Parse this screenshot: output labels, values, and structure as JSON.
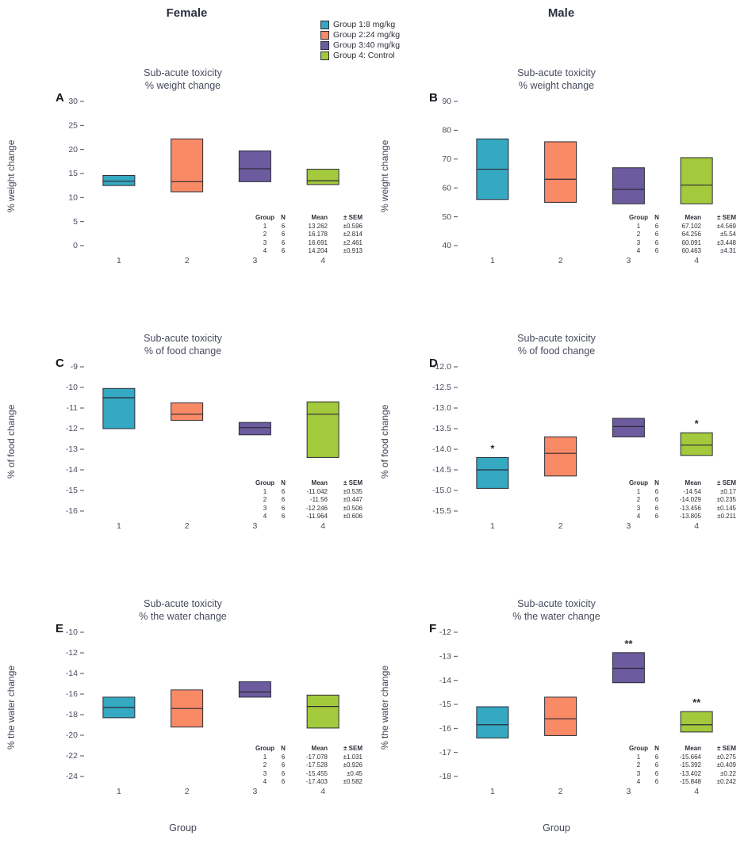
{
  "columns": [
    "Female",
    "Male"
  ],
  "legend": {
    "items": [
      {
        "label": "Group 1:8 mg/kg",
        "color": "#35a8c2"
      },
      {
        "label": "Group 2:24 mg/kg",
        "color": "#f98a66"
      },
      {
        "label": "Group 3:40 mg/kg",
        "color": "#6c5b9e"
      },
      {
        "label": "Group 4: Control",
        "color": "#a3c93c"
      }
    ]
  },
  "style": {
    "box_outline": "#2a2a35"
  },
  "stats_header": [
    "Group",
    "N",
    "Mean",
    "± SEM"
  ],
  "chart_data": [
    {
      "type": "bar",
      "bar_style": "floating-range-with-mean-line",
      "letter": "A",
      "sex": "Female",
      "title1": "Sub-acute toxicity",
      "title2": "% weight change",
      "ylabel": "% weight change",
      "ylim": [
        0,
        30
      ],
      "yticks": [
        "30",
        "25",
        "20",
        "15",
        "10",
        "5",
        "0"
      ],
      "categories": [
        "1",
        "2",
        "3",
        "4"
      ],
      "boxes": [
        {
          "low": 12.5,
          "high": 14.6,
          "mid": 13.4,
          "marker": ""
        },
        {
          "low": 11.2,
          "high": 22.2,
          "mid": 13.3,
          "marker": ""
        },
        {
          "low": 13.3,
          "high": 19.7,
          "mid": 16.0,
          "marker": ""
        },
        {
          "low": 12.7,
          "high": 15.9,
          "mid": 13.5,
          "marker": ""
        }
      ],
      "stats": [
        {
          "group": "1",
          "n": "6",
          "mean": "13.262",
          "sem": "±0.596"
        },
        {
          "group": "2",
          "n": "6",
          "mean": "16.178",
          "sem": "±2.814"
        },
        {
          "group": "3",
          "n": "6",
          "mean": "16.691",
          "sem": "±2.461"
        },
        {
          "group": "4",
          "n": "6",
          "mean": "14.204",
          "sem": "±0.913"
        }
      ]
    },
    {
      "type": "bar",
      "bar_style": "floating-range-with-mean-line",
      "letter": "B",
      "sex": "Male",
      "title1": "Sub-acute toxicity",
      "title2": "%  weight change",
      "ylabel": "% weight change",
      "ylim": [
        40,
        90
      ],
      "yticks": [
        "90",
        "80",
        "70",
        "60",
        "50",
        "40"
      ],
      "categories": [
        "1",
        "2",
        "3",
        "4"
      ],
      "boxes": [
        {
          "low": 56,
          "high": 77,
          "mid": 66.5,
          "marker": ""
        },
        {
          "low": 55,
          "high": 76,
          "mid": 63,
          "marker": ""
        },
        {
          "low": 54.5,
          "high": 67,
          "mid": 59.5,
          "marker": ""
        },
        {
          "low": 54.5,
          "high": 70.5,
          "mid": 61,
          "marker": ""
        }
      ],
      "stats": [
        {
          "group": "1",
          "n": "6",
          "mean": "67.102",
          "sem": "±4.569"
        },
        {
          "group": "2",
          "n": "6",
          "mean": "64.256",
          "sem": "±5.54"
        },
        {
          "group": "3",
          "n": "6",
          "mean": "60.091",
          "sem": "±3.448"
        },
        {
          "group": "4",
          "n": "6",
          "mean": "60.463",
          "sem": "±4.31"
        }
      ]
    },
    {
      "type": "bar",
      "bar_style": "floating-range-with-mean-line",
      "letter": "C",
      "sex": "Female",
      "title1": "Sub-acute toxicity",
      "title2": "% of food change",
      "ylabel": "% of food change",
      "ylim": [
        -16,
        -9
      ],
      "yticks": [
        "-9",
        "-10",
        "-11",
        "-12",
        "-13",
        "-14",
        "-15",
        "-16"
      ],
      "categories": [
        "1",
        "2",
        "3",
        "4"
      ],
      "boxes": [
        {
          "low": -12.0,
          "high": -10.05,
          "mid": -10.5,
          "marker": ""
        },
        {
          "low": -11.6,
          "high": -10.75,
          "mid": -11.3,
          "marker": ""
        },
        {
          "low": -12.3,
          "high": -11.7,
          "mid": -11.95,
          "marker": ""
        },
        {
          "low": -13.4,
          "high": -10.7,
          "mid": -11.3,
          "marker": ""
        }
      ],
      "stats": [
        {
          "group": "1",
          "n": "6",
          "mean": "-11.042",
          "sem": "±0.535"
        },
        {
          "group": "2",
          "n": "6",
          "mean": "-11.56",
          "sem": "±0.447"
        },
        {
          "group": "3",
          "n": "6",
          "mean": "-12.246",
          "sem": "±0.506"
        },
        {
          "group": "4",
          "n": "6",
          "mean": "-11.964",
          "sem": "±0.606"
        }
      ]
    },
    {
      "type": "bar",
      "bar_style": "floating-range-with-mean-line",
      "letter": "D",
      "sex": "Male",
      "title1": "Sub-acute toxicity",
      "title2": "% of food change",
      "ylabel": "% of food change",
      "ylim": [
        -15.5,
        -12.0
      ],
      "yticks": [
        "-12.0",
        "-12.5",
        "-13.0",
        "-13.5",
        "-14.0",
        "-14.5",
        "-15.0",
        "-15.5"
      ],
      "categories": [
        "1",
        "2",
        "3",
        "4"
      ],
      "boxes": [
        {
          "low": -14.95,
          "high": -14.2,
          "mid": -14.5,
          "marker": "*"
        },
        {
          "low": -14.65,
          "high": -13.7,
          "mid": -14.1,
          "marker": ""
        },
        {
          "low": -13.7,
          "high": -13.25,
          "mid": -13.45,
          "marker": ""
        },
        {
          "low": -14.15,
          "high": -13.6,
          "mid": -13.9,
          "marker": "*"
        }
      ],
      "stats": [
        {
          "group": "1",
          "n": "6",
          "mean": "-14.54",
          "sem": "±0.17"
        },
        {
          "group": "2",
          "n": "6",
          "mean": "-14.029",
          "sem": "±0.235"
        },
        {
          "group": "3",
          "n": "6",
          "mean": "-13.456",
          "sem": "±0.145"
        },
        {
          "group": "4",
          "n": "6",
          "mean": "-13.805",
          "sem": "±0.211"
        }
      ]
    },
    {
      "type": "bar",
      "bar_style": "floating-range-with-mean-line",
      "letter": "E",
      "sex": "Female",
      "title1": "Sub-acute toxicity",
      "title2": "% the water change",
      "ylabel": "% the water change",
      "xlabel": "Group",
      "ylim": [
        -24,
        -10
      ],
      "yticks": [
        "-10",
        "-12",
        "-14",
        "-16",
        "-18",
        "-20",
        "-22",
        "-24"
      ],
      "categories": [
        "1",
        "2",
        "3",
        "4"
      ],
      "boxes": [
        {
          "low": -18.3,
          "high": -16.3,
          "mid": -17.3,
          "marker": ""
        },
        {
          "low": -19.2,
          "high": -15.6,
          "mid": -17.4,
          "marker": ""
        },
        {
          "low": -16.3,
          "high": -14.8,
          "mid": -15.8,
          "marker": ""
        },
        {
          "low": -19.3,
          "high": -16.1,
          "mid": -17.2,
          "marker": ""
        }
      ],
      "stats": [
        {
          "group": "1",
          "n": "6",
          "mean": "-17.078",
          "sem": "±1.031"
        },
        {
          "group": "2",
          "n": "6",
          "mean": "-17.528",
          "sem": "±0.926"
        },
        {
          "group": "3",
          "n": "6",
          "mean": "-15.455",
          "sem": "±0.45"
        },
        {
          "group": "4",
          "n": "6",
          "mean": "-17.403",
          "sem": "±0.582"
        }
      ]
    },
    {
      "type": "bar",
      "bar_style": "floating-range-with-mean-line",
      "letter": "F",
      "sex": "Male",
      "title1": "Sub-acute toxicity",
      "title2": "% the water change",
      "ylabel": "% the water change",
      "xlabel": "Group",
      "ylim": [
        -18,
        -12
      ],
      "yticks": [
        "-12",
        "-13",
        "-14",
        "-15",
        "-16",
        "-17",
        "-18"
      ],
      "categories": [
        "1",
        "2",
        "3",
        "4"
      ],
      "boxes": [
        {
          "low": -16.4,
          "high": -15.1,
          "mid": -15.85,
          "marker": ""
        },
        {
          "low": -16.3,
          "high": -14.7,
          "mid": -15.6,
          "marker": ""
        },
        {
          "low": -14.1,
          "high": -12.85,
          "mid": -13.5,
          "marker": "**"
        },
        {
          "low": -16.15,
          "high": -15.3,
          "mid": -15.85,
          "marker": "**"
        }
      ],
      "stats": [
        {
          "group": "1",
          "n": "6",
          "mean": "-15.664",
          "sem": "±0.275"
        },
        {
          "group": "2",
          "n": "6",
          "mean": "-15.392",
          "sem": "±0.409"
        },
        {
          "group": "3",
          "n": "6",
          "mean": "-13.402",
          "sem": "±0.22"
        },
        {
          "group": "4",
          "n": "6",
          "mean": "-15.848",
          "sem": "±0.242"
        }
      ]
    }
  ]
}
